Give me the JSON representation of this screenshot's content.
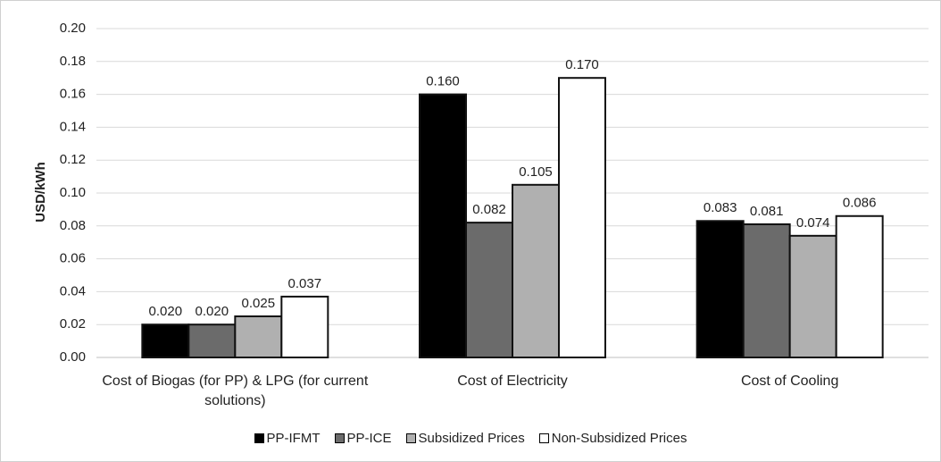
{
  "chart_data": {
    "type": "bar",
    "y_label": "USD/kWh",
    "categories": [
      "Cost of Biogas (for PP) & LPG (for current solutions)",
      "Cost of Electricity",
      "Cost of Cooling"
    ],
    "series": [
      {
        "name": "PP-IFMT",
        "color": "#000000",
        "values": [
          0.02,
          0.16,
          0.083
        ],
        "value_labels": [
          "0.020",
          "0.160",
          "0.083"
        ]
      },
      {
        "name": "PP-ICE",
        "color": "#6b6b6b",
        "values": [
          0.02,
          0.082,
          0.081
        ],
        "value_labels": [
          "0.020",
          "0.082",
          "0.081"
        ]
      },
      {
        "name": "Subsidized Prices",
        "color": "#b0b0b0",
        "values": [
          0.025,
          0.105,
          0.074
        ],
        "value_labels": [
          "0.025",
          "0.105",
          "0.074"
        ]
      },
      {
        "name": "Non-Subsidized Prices",
        "color": "#ffffff",
        "values": [
          0.037,
          0.17,
          0.086
        ],
        "value_labels": [
          "0.037",
          "0.170",
          "0.086"
        ]
      }
    ],
    "ylim": [
      0,
      0.2
    ],
    "yticks": [
      {
        "value": 0,
        "label": "0.00"
      },
      {
        "value": 0.02,
        "label": "0.02"
      },
      {
        "value": 0.04,
        "label": "0.04"
      },
      {
        "value": 0.06,
        "label": "0.06"
      },
      {
        "value": 0.08,
        "label": "0.08"
      },
      {
        "value": 0.1,
        "label": "0.10"
      },
      {
        "value": 0.12,
        "label": "0.12"
      },
      {
        "value": 0.14,
        "label": "0.14"
      },
      {
        "value": 0.16,
        "label": "0.16"
      },
      {
        "value": 0.18,
        "label": "0.18"
      },
      {
        "value": 0.2,
        "label": "0.20"
      }
    ],
    "grid": true,
    "legend": "bottom"
  }
}
